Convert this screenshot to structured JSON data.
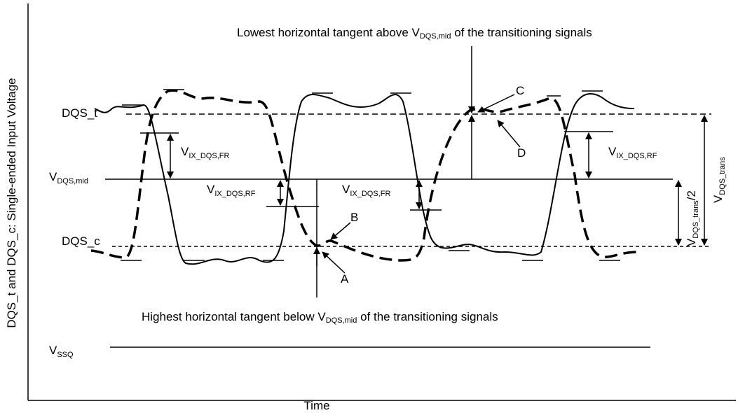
{
  "axes": {
    "y_label": "DQS_t and DQS_c: Single-ended Input Voltage",
    "x_label": "Time"
  },
  "signals": {
    "dqs_t": "DQS_t",
    "dqs_c": "DQS_c"
  },
  "levels": {
    "mid": {
      "v": "V",
      "sub": "DQS,mid"
    },
    "ssq": {
      "v": "V",
      "sub": "SSQ"
    }
  },
  "annotations": {
    "top": {
      "before": "Lowest horizontal tangent above V",
      "sub": "DQS,mid",
      "after": " of the transitioning signals"
    },
    "bottom": {
      "before": "Highest horizontal tangent below V",
      "sub": "DQS,mid",
      "after": " of the transitioning signals"
    }
  },
  "measurements": [
    {
      "v": "V",
      "sub": "IX_DQS,FR"
    },
    {
      "v": "V",
      "sub": "IX_DQS,RF"
    },
    {
      "v": "V",
      "sub": "IX_DQS,FR"
    },
    {
      "v": "V",
      "sub": "IX_DQS,RF"
    }
  ],
  "trans": {
    "v": "V",
    "sub": "DQS_trans"
  },
  "half": {
    "v": "V",
    "sub": "DQS_trans",
    "after": "/2"
  },
  "points": [
    "A",
    "B",
    "C",
    "D"
  ]
}
